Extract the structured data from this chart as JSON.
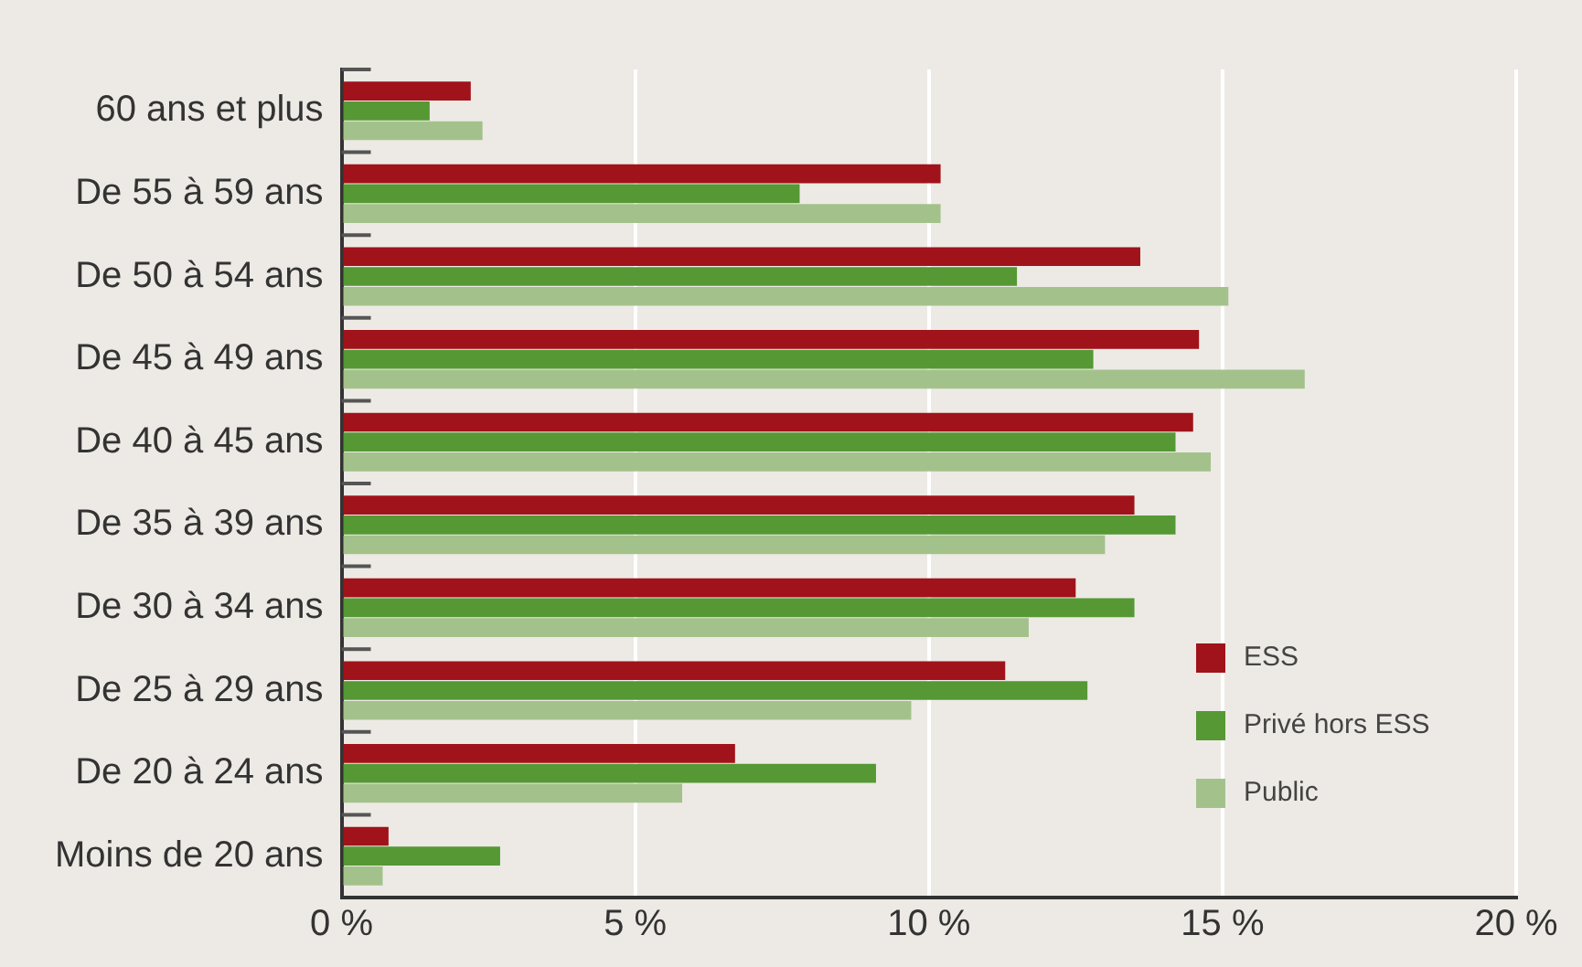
{
  "chart_data": {
    "type": "bar",
    "orientation": "horizontal",
    "categories": [
      "60 ans et plus",
      "De 55 à 59 ans",
      "De 50 à 54 ans",
      "De 45 à 49 ans",
      "De 40 à 45 ans",
      "De 35 à 39 ans",
      "De 30 à 34 ans",
      "De 25 à 29 ans",
      "De 20 à 24 ans",
      "Moins de 20 ans"
    ],
    "series": [
      {
        "name": "ESS",
        "color": "#a0131a",
        "values": [
          2.2,
          10.2,
          13.6,
          14.6,
          14.5,
          13.5,
          12.5,
          11.3,
          6.7,
          0.8
        ]
      },
      {
        "name": "Privé hors ESS",
        "color": "#559834",
        "values": [
          1.5,
          7.8,
          11.5,
          12.8,
          14.2,
          14.2,
          13.5,
          12.7,
          9.1,
          2.7
        ]
      },
      {
        "name": "Public",
        "color": "#a3c28b",
        "values": [
          2.4,
          10.2,
          15.1,
          16.4,
          14.8,
          13.0,
          11.7,
          9.7,
          5.8,
          0.7
        ]
      }
    ],
    "xlim": [
      0,
      20
    ],
    "xticks": [
      {
        "value": 0,
        "label": "0 %"
      },
      {
        "value": 5,
        "label": "5 %"
      },
      {
        "value": 10,
        "label": "10 %"
      },
      {
        "value": 15,
        "label": "15 %"
      },
      {
        "value": 20,
        "label": "20 %"
      }
    ],
    "grid": "x",
    "legend": "bottom right"
  }
}
